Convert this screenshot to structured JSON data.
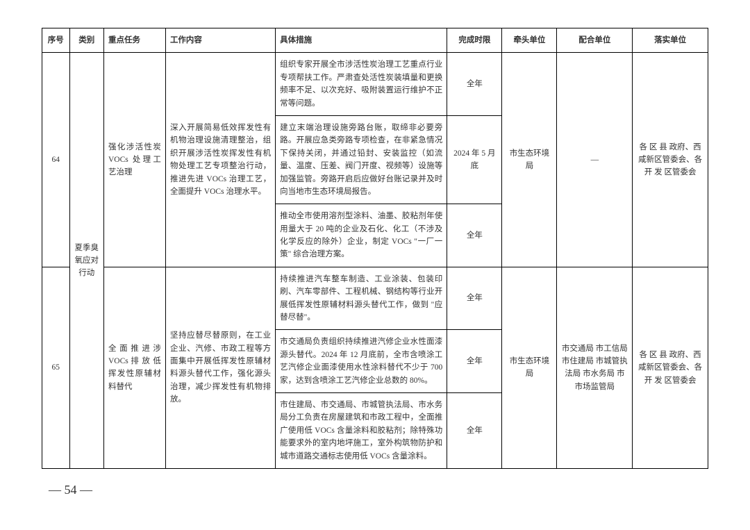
{
  "headers": {
    "seq": "序号",
    "category": "类别",
    "task": "重点任务",
    "content": "工作内容",
    "measure": "具体措施",
    "time": "完成时限",
    "lead": "牵头单位",
    "coop": "配合单位",
    "impl": "落实单位"
  },
  "category_shared": "夏季臭氧应对行动",
  "row64": {
    "seq": "64",
    "task": "强化涉活性炭 VOCs 处理工艺治理",
    "content": "深入开展简易低效挥发性有机物治理设施清理整治，组织开展涉活性炭挥发性有机物处理工艺专项整治行动，推进先进 VOCs 治理工艺，全面提升 VOCs 治理水平。",
    "measures": [
      {
        "text": "组织专家开展全市涉活性炭治理工艺重点行业专项帮扶工作。严肃查处活性炭装填量和更换频率不足、以次充好、吸附装置运行维护不正常等问题。",
        "time": "全年"
      },
      {
        "text": "建立末端治理设施旁路台账，取缔非必要旁路。开展应急类旁路专项检查，在非紧急情况下保持关闭，并通过铅封、安装监控（如流量、温度、压差、阀门开度、视频等）设施等加强监管。旁路开启后应做好台账记录并及时向当地市生态环境局报告。",
        "time": "2024 年 5 月底"
      },
      {
        "text": "推动全市使用溶剂型涂料、油墨、胶粘剂年使用量大于 20 吨的企业及石化、化工（不涉及化学反应的除外）企业，制定 VOCs \"一厂一策\" 综合治理方案。",
        "time": "全年"
      }
    ],
    "lead": "市生态环境局",
    "coop": "—",
    "impl": "各 区 县 政府、西咸新区管委会、各 开 发 区管委会"
  },
  "row65": {
    "seq": "65",
    "task": "全 面 推 进 涉 VOCs 排 放 低挥发性原辅材料替代",
    "content": "坚持应替尽替原则，在工业企业、汽修、市政工程等方面集中开展低挥发性原辅材料源头替代工作，强化源头治理，减少挥发性有机物排放。",
    "measures": [
      {
        "text": "持续推进汽车整车制造、工业涂装、包装印刷、汽车零部件、工程机械、钢结构等行业开展低挥发性原辅材料源头替代工作，做到 \"应替尽替\"。",
        "time": "全年"
      },
      {
        "text": "市交通局负责组织持续推进汽修企业水性面漆源头替代。2024 年 12 月底前，全市含喷涂工艺汽修企业面漆使用水性涂料替代不少于 700 家，达到含喷涂工艺汽修企业总数的 80%。",
        "time": "全年"
      },
      {
        "text": "市住建局、市交通局、市城管执法局、市水务局分工负责在房屋建筑和市政工程中，全面推广使用低 VOCs 含量涂料和胶粘剂；除特殊功能要求外的室内地坪施工，室外构筑物防护和城市道路交通标志使用低 VOCs 含量涂料。",
        "time": "全年"
      }
    ],
    "lead": "市生态环境局",
    "coop": "市交通局 市工信局 市住建局 市城管执法局 市水务局 市市场监管局",
    "impl": "各 区 县 政府、西咸新区管委会、各 开 发 区管委会"
  },
  "page_number": "— 54 —"
}
